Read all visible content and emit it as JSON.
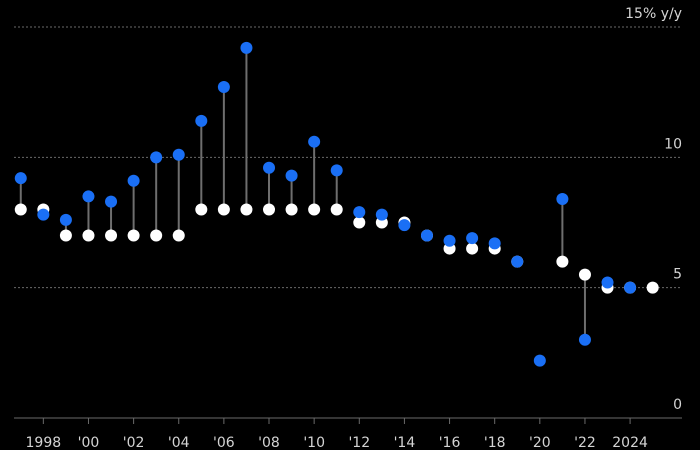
{
  "chart_data": {
    "type": "scatter",
    "subtype": "dumbbell",
    "colors": {
      "target": "#ffffff",
      "actual": "#1a6ff5",
      "background": "#000000",
      "grid": "#6a6a6a",
      "stem": "#6e6e6e"
    },
    "ylim": [
      0,
      15
    ],
    "ytick_values": [
      0,
      5,
      10,
      15
    ],
    "ytick_labels": [
      "0",
      "5",
      "10",
      "15% y/y"
    ],
    "xlim": [
      1996.7,
      2026.3
    ],
    "xtick_values": [
      1998,
      2000,
      2002,
      2004,
      2006,
      2008,
      2010,
      2012,
      2014,
      2016,
      2018,
      2020,
      2022,
      2024
    ],
    "xtick_labels": [
      "1998",
      "'00",
      "'02",
      "'04",
      "'06",
      "'08",
      "'10",
      "'12",
      "'14",
      "'16",
      "'18",
      "'20",
      "'22",
      "2024"
    ],
    "grid": "horizontal dotted",
    "series": [
      {
        "color": "#ffffff",
        "x": [
          1997,
          1998,
          1999,
          2000,
          2001,
          2002,
          2003,
          2004,
          2005,
          2006,
          2007,
          2008,
          2009,
          2010,
          2011,
          2012,
          2013,
          2014,
          2015,
          2016,
          2017,
          2018,
          2019,
          2020,
          2021,
          2022,
          2023,
          2024,
          2025
        ],
        "values": [
          8,
          8,
          7,
          7,
          7,
          7,
          7,
          7,
          8,
          8,
          8,
          8,
          8,
          8,
          8,
          7.5,
          7.5,
          7.5,
          7,
          6.5,
          6.5,
          6.5,
          6,
          null,
          6,
          5.5,
          5,
          5,
          5
        ]
      },
      {
        "color": "#1a6ff5",
        "x": [
          1997,
          1998,
          1999,
          2000,
          2001,
          2002,
          2003,
          2004,
          2005,
          2006,
          2007,
          2008,
          2009,
          2010,
          2011,
          2012,
          2013,
          2014,
          2015,
          2016,
          2017,
          2018,
          2019,
          2020,
          2021,
          2022,
          2023,
          2024
        ],
        "values": [
          9.2,
          7.8,
          7.6,
          8.5,
          8.3,
          9.1,
          10.0,
          10.1,
          11.4,
          12.7,
          14.2,
          9.6,
          9.3,
          10.6,
          9.5,
          7.9,
          7.8,
          7.4,
          7.0,
          6.8,
          6.9,
          6.7,
          6.0,
          2.2,
          8.4,
          3.0,
          5.2,
          5.0
        ]
      }
    ]
  }
}
